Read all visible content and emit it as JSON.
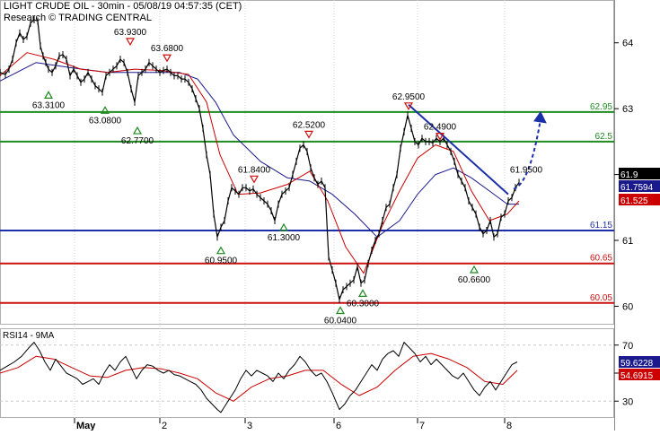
{
  "header": {
    "title": "LIGHT CRUDE OIL - 30min - 05/08/19 04:57:35 (CET)",
    "subtitle": "Research © TRADING CENTRAL"
  },
  "colors": {
    "price": "#000000",
    "ma_fast": "#cc0000",
    "ma_slow": "#1a1a8c",
    "resistance": "#1f8a1f",
    "pivot": "#1b2fa8",
    "support": "#cc1111",
    "rsi": "#000000",
    "rsi_ma": "#cc0000",
    "arrow": "#1b2fa8",
    "trendline": "#1b2fa8"
  },
  "chart_data": [
    {
      "type": "line",
      "panel": "price",
      "x_tick_labels": [
        "May",
        "2",
        "3",
        "6",
        "7",
        "8"
      ],
      "y_ticks": [
        60,
        61,
        62,
        63,
        64
      ],
      "ylim": [
        59.72,
        64.65
      ],
      "xlim": [
        0,
        684
      ],
      "series": [
        {
          "role": "price",
          "x": [
            0,
            6,
            10,
            14,
            18,
            22,
            26,
            30,
            34,
            38,
            42,
            45,
            48,
            51,
            54,
            58,
            62,
            66,
            70,
            74,
            78,
            82,
            86,
            90,
            94,
            98,
            102,
            106,
            110,
            114,
            118,
            122,
            126,
            130,
            134,
            138,
            142,
            146,
            150,
            154,
            158,
            162,
            166,
            170,
            174,
            178,
            182,
            186,
            190,
            194,
            198,
            202,
            206,
            210,
            214,
            218,
            222,
            226,
            230,
            234,
            238,
            242,
            246,
            250,
            254,
            258,
            262,
            266,
            270,
            274,
            278,
            282,
            286,
            290,
            294,
            298,
            302,
            306,
            310,
            314,
            318,
            322,
            326,
            330,
            334,
            338,
            342,
            346,
            350,
            354,
            358,
            362,
            366,
            370,
            374,
            378,
            382,
            386,
            390,
            394,
            398,
            402,
            406,
            410,
            414,
            418,
            422,
            426,
            430,
            434,
            438,
            442,
            446,
            450,
            454,
            458,
            462,
            466,
            470,
            474,
            478,
            482,
            486,
            490,
            494,
            498,
            502,
            506,
            510,
            514,
            518,
            522,
            526,
            530,
            534,
            538,
            542,
            546,
            550,
            554,
            558,
            562,
            566,
            570,
            574,
            578
          ],
          "values": [
            63.55,
            63.52,
            63.6,
            63.75,
            64.0,
            64.15,
            64.05,
            64.1,
            64.3,
            64.35,
            64.33,
            63.95,
            63.8,
            63.7,
            63.6,
            63.55,
            63.65,
            63.8,
            63.82,
            63.75,
            63.5,
            63.6,
            63.5,
            63.4,
            63.45,
            63.55,
            63.45,
            63.35,
            63.3,
            63.25,
            63.5,
            63.55,
            63.6,
            63.65,
            63.75,
            63.7,
            63.55,
            63.3,
            63.1,
            63.5,
            63.55,
            63.6,
            63.7,
            63.65,
            63.6,
            63.55,
            63.58,
            63.6,
            63.55,
            63.5,
            63.5,
            63.45,
            63.45,
            63.4,
            63.3,
            63.15,
            63.0,
            62.7,
            62.3,
            62.0,
            61.4,
            61.05,
            61.2,
            61.3,
            61.6,
            61.8,
            61.75,
            61.7,
            61.8,
            61.8,
            61.75,
            61.78,
            61.7,
            61.65,
            61.6,
            61.55,
            61.45,
            61.3,
            61.55,
            61.7,
            61.75,
            61.8,
            62.0,
            62.2,
            62.4,
            62.45,
            62.35,
            62.1,
            61.95,
            61.85,
            61.9,
            61.8,
            60.75,
            60.55,
            60.35,
            60.1,
            60.25,
            60.3,
            60.35,
            60.4,
            60.6,
            60.35,
            60.4,
            60.65,
            60.85,
            61.0,
            61.1,
            61.3,
            61.5,
            61.55,
            61.8,
            62.0,
            62.4,
            62.65,
            62.9,
            62.7,
            62.5,
            62.45,
            62.55,
            62.5,
            62.5,
            62.48,
            62.55,
            62.5,
            62.55,
            62.45,
            62.35,
            62.2,
            62.0,
            61.9,
            61.8,
            61.6,
            61.5,
            61.4,
            61.2,
            61.1,
            61.15,
            61.3,
            61.05,
            61.1,
            61.35,
            61.4,
            61.6,
            61.65,
            61.8,
            61.88
          ]
        },
        {
          "role": "ma_fast",
          "x": [
            0,
            30,
            60,
            90,
            120,
            150,
            180,
            210,
            230,
            245,
            265,
            290,
            320,
            345,
            365,
            385,
            405,
            425,
            445,
            465,
            485,
            505,
            525,
            545,
            565,
            578
          ],
          "values": [
            63.5,
            63.85,
            63.75,
            63.6,
            63.55,
            63.6,
            63.58,
            63.52,
            63.1,
            62.3,
            61.7,
            61.72,
            61.85,
            62.05,
            61.6,
            60.9,
            60.5,
            61.2,
            61.75,
            62.25,
            62.45,
            62.35,
            61.75,
            61.3,
            61.4,
            61.6
          ]
        },
        {
          "role": "ma_slow",
          "x": [
            0,
            40,
            80,
            120,
            160,
            200,
            220,
            240,
            260,
            290,
            320,
            345,
            370,
            395,
            420,
            445,
            465,
            485,
            505,
            525,
            545,
            565,
            578
          ],
          "values": [
            63.42,
            63.7,
            63.62,
            63.55,
            63.55,
            63.55,
            63.45,
            63.1,
            62.6,
            62.2,
            61.95,
            61.9,
            61.7,
            61.4,
            61.05,
            61.3,
            61.7,
            62.0,
            62.1,
            61.95,
            61.75,
            61.55,
            61.55
          ]
        }
      ],
      "levels": [
        {
          "value": 62.95,
          "label": "62.95",
          "kind": "resistance"
        },
        {
          "value": 62.5,
          "label": "62.5",
          "kind": "resistance"
        },
        {
          "value": 61.15,
          "label": "61.15",
          "kind": "pivot"
        },
        {
          "value": 60.65,
          "label": "60.65",
          "kind": "support"
        },
        {
          "value": 60.05,
          "label": "60.05",
          "kind": "support"
        }
      ],
      "annotations": [
        {
          "x": 54,
          "value": 63.31,
          "label": "63.3100",
          "kind": "low"
        },
        {
          "x": 117,
          "value": 63.08,
          "label": "63.0800",
          "kind": "low"
        },
        {
          "x": 145,
          "value": 63.93,
          "label": "63.9300",
          "kind": "high"
        },
        {
          "x": 153,
          "value": 62.77,
          "label": "62.7700",
          "kind": "low"
        },
        {
          "x": 186,
          "value": 63.68,
          "label": "63.6800",
          "kind": "high"
        },
        {
          "x": 246,
          "value": 60.95,
          "label": "60.9500",
          "kind": "low"
        },
        {
          "x": 283,
          "value": 61.84,
          "label": "61.8400",
          "kind": "high"
        },
        {
          "x": 316,
          "value": 61.3,
          "label": "61.3000",
          "kind": "low"
        },
        {
          "x": 344,
          "value": 62.52,
          "label": "62.5200",
          "kind": "high"
        },
        {
          "x": 379,
          "value": 60.04,
          "label": "60.0400",
          "kind": "low"
        },
        {
          "x": 404,
          "value": 60.3,
          "label": "60.3000",
          "kind": "low"
        },
        {
          "x": 455,
          "value": 62.95,
          "label": "62.9500",
          "kind": "high"
        },
        {
          "x": 490,
          "value": 62.49,
          "label": "62.4900",
          "kind": "high"
        },
        {
          "x": 528,
          "value": 60.66,
          "label": "60.6600",
          "kind": "low"
        },
        {
          "x": 586,
          "value": 61.95,
          "label": "61.9500",
          "kind": "target"
        }
      ],
      "trendline": {
        "x": [
          455,
          566
        ],
        "values": [
          63.06,
          61.7
        ]
      },
      "arrow": {
        "x": [
          572,
          602
        ],
        "values": [
          61.78,
          62.95
        ]
      },
      "last_values": [
        {
          "label": "61.9",
          "style": "price"
        },
        {
          "label": "61.7594",
          "style": "ma_slow"
        },
        {
          "label": "61.525",
          "style": "ma_fast"
        }
      ]
    },
    {
      "type": "line",
      "panel": "rsi",
      "title": "RSI14 - 9MA",
      "y_ticks": [
        30,
        50,
        70
      ],
      "ylim": [
        18,
        82
      ],
      "series": [
        {
          "role": "rsi",
          "x": [
            0,
            8,
            16,
            24,
            32,
            38,
            44,
            50,
            56,
            62,
            68,
            74,
            80,
            86,
            92,
            98,
            104,
            110,
            116,
            122,
            128,
            134,
            140,
            146,
            152,
            158,
            164,
            170,
            176,
            182,
            188,
            194,
            200,
            206,
            212,
            218,
            224,
            230,
            236,
            242,
            246,
            250,
            256,
            262,
            268,
            274,
            280,
            286,
            292,
            298,
            304,
            310,
            316,
            322,
            328,
            334,
            340,
            346,
            352,
            358,
            364,
            370,
            374,
            378,
            384,
            390,
            396,
            402,
            408,
            414,
            420,
            426,
            432,
            438,
            444,
            450,
            456,
            462,
            468,
            474,
            480,
            486,
            492,
            498,
            504,
            510,
            516,
            522,
            528,
            534,
            540,
            546,
            552,
            558,
            564,
            570,
            576
          ],
          "values": [
            52,
            55,
            58,
            62,
            68,
            72,
            66,
            58,
            52,
            60,
            55,
            50,
            48,
            46,
            42,
            44,
            46,
            42,
            50,
            56,
            52,
            58,
            62,
            54,
            46,
            52,
            56,
            55,
            52,
            50,
            52,
            49,
            48,
            46,
            44,
            42,
            38,
            32,
            28,
            24,
            22,
            26,
            32,
            38,
            46,
            52,
            48,
            52,
            50,
            48,
            44,
            50,
            46,
            52,
            56,
            62,
            58,
            52,
            48,
            50,
            44,
            36,
            30,
            24,
            28,
            34,
            38,
            44,
            50,
            56,
            52,
            60,
            64,
            66,
            62,
            72,
            68,
            64,
            58,
            62,
            56,
            60,
            56,
            52,
            48,
            46,
            50,
            44,
            38,
            34,
            40,
            44,
            38,
            44,
            50,
            56,
            58
          ]
        },
        {
          "role": "rsi_ma",
          "x": [
            0,
            20,
            40,
            60,
            80,
            100,
            120,
            140,
            160,
            180,
            200,
            220,
            240,
            260,
            280,
            300,
            320,
            340,
            360,
            380,
            400,
            420,
            440,
            460,
            480,
            500,
            520,
            540,
            560,
            576
          ],
          "values": [
            50,
            54,
            62,
            60,
            54,
            48,
            47,
            52,
            54,
            53,
            50,
            46,
            36,
            30,
            40,
            46,
            48,
            52,
            52,
            42,
            34,
            40,
            52,
            62,
            64,
            60,
            54,
            44,
            42,
            52
          ]
        }
      ],
      "levels": [
        70,
        30
      ],
      "last_values": [
        {
          "label": "59.6228",
          "style": "rsi"
        },
        {
          "label": "54.6915",
          "style": "rsi_ma"
        }
      ]
    }
  ]
}
